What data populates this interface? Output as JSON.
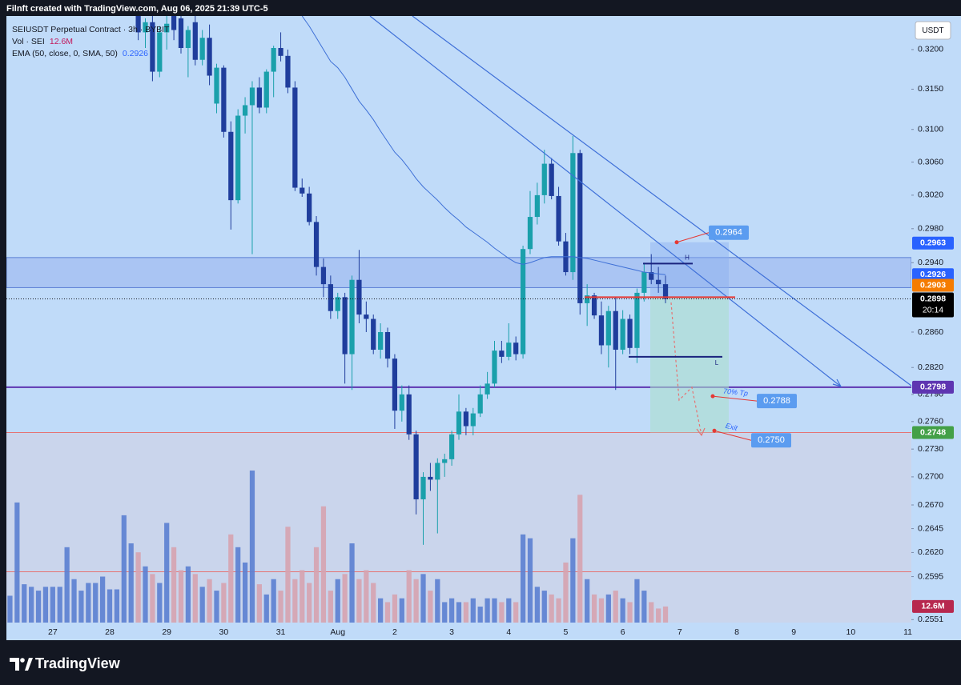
{
  "header": {
    "attribution": "Filnft created with TradingView.com, Aug 06, 2025 21:39 UTC-5"
  },
  "legend": {
    "symbol": "SEIUSDT Perpetual Contract · 3h · BYBIT",
    "volume": "Vol · SEI",
    "ema": "EMA (50, close, 0, SMA, 50)"
  },
  "currency_button": "USDT",
  "footer": {
    "brand": "TradingView"
  },
  "chart_data": {
    "type": "candlestick",
    "log_scale": true,
    "grid": false,
    "up_color": "#1aa0ab",
    "down_color": "#1f3d9c",
    "volume_up_color": "#5b7fd1",
    "volume_down_color": "#d6a3b0",
    "ema_color": "#3d6fd6",
    "ylim": [
      0.2548,
      0.3243
    ],
    "yticks": [
      {
        "value": 0.32,
        "label": "0.3200"
      },
      {
        "value": 0.315,
        "label": "0.3150"
      },
      {
        "value": 0.31,
        "label": "0.3100"
      },
      {
        "value": 0.306,
        "label": "0.3060"
      },
      {
        "value": 0.302,
        "label": "0.3020"
      },
      {
        "value": 0.298,
        "label": "0.2980"
      },
      {
        "value": 0.294,
        "label": "0.2940"
      },
      {
        "value": 0.286,
        "label": "0.2860"
      },
      {
        "value": 0.282,
        "label": "0.2820"
      },
      {
        "value": 0.279,
        "label": "0.2790"
      },
      {
        "value": 0.276,
        "label": "0.2760"
      },
      {
        "value": 0.273,
        "label": "0.2730"
      },
      {
        "value": 0.27,
        "label": "0.2700"
      },
      {
        "value": 0.267,
        "label": "0.2670"
      },
      0.2645,
      {
        "value": 0.262,
        "label": "0.2620"
      },
      0.2595,
      0.2551
    ],
    "categories": [
      null,
      null,
      null,
      null,
      null,
      null,
      "27",
      null,
      null,
      null,
      null,
      null,
      null,
      null,
      "28",
      null,
      null,
      null,
      null,
      null,
      null,
      null,
      "29",
      null,
      null,
      null,
      null,
      null,
      null,
      null,
      "30",
      null,
      null,
      null,
      null,
      null,
      null,
      null,
      "31",
      null,
      null,
      null,
      null,
      null,
      null,
      null,
      "Aug",
      null,
      null,
      null,
      null,
      null,
      null,
      null,
      "2",
      null,
      null,
      null,
      null,
      null,
      null,
      null,
      "3",
      null,
      null,
      null,
      null,
      null,
      null,
      null,
      "4",
      null,
      null,
      null,
      null,
      null,
      null,
      null,
      "5",
      null,
      null,
      null,
      null,
      null,
      null,
      null,
      "6",
      null,
      null,
      null,
      null,
      null,
      null,
      null,
      "7",
      null,
      null,
      null,
      null,
      null,
      null,
      null,
      "8",
      null,
      null,
      null,
      null,
      null,
      null,
      null,
      "9",
      null,
      null,
      null,
      null,
      null,
      null,
      null,
      "10",
      null,
      null,
      null,
      null,
      null,
      null,
      null,
      "11"
    ],
    "open": [
      null,
      null,
      null,
      null,
      null,
      null,
      null,
      null,
      null,
      null,
      null,
      null,
      null,
      null,
      null,
      null,
      null,
      null,
      0.3243,
      0.3222,
      0.3235,
      0.3172,
      0.3222,
      0.3243,
      0.324,
      0.3202,
      0.3235,
      0.3187,
      0.3215,
      0.3132,
      0.3177,
      0.3097,
      0.3014,
      0.3117,
      0.313,
      0.3152,
      0.3127,
      0.3172,
      0.3202,
      0.3192,
      0.3152,
      0.3029,
      0.3022,
      0.2988,
      0.2935,
      0.2915,
      0.2884,
      0.29,
      0.2835,
      0.292,
      0.288,
      0.2875,
      0.284,
      0.286,
      0.283,
      0.2772,
      0.279,
      0.2746,
      0.2676,
      0.27,
      0.2697,
      0.2715,
      0.2719,
      0.2746,
      0.2771,
      0.2755,
      0.2769,
      0.279,
      0.2802,
      0.2839,
      0.2832,
      0.2848,
      0.2835,
      0.2956,
      0.2994,
      0.302,
      0.3058,
      0.3019,
      0.2965,
      0.2929,
      0.3071,
      0.2893,
      0.2902,
      0.2879,
      0.2845,
      0.2884,
      0.284,
      0.2875,
      0.2842,
      0.2905,
      0.2929,
      0.292,
      0.2915,
      null,
      null,
      null,
      null,
      null,
      null,
      null,
      null,
      null,
      null,
      null,
      null,
      null,
      null,
      null,
      null,
      null,
      null,
      null,
      null,
      null,
      null,
      null,
      null,
      null,
      null,
      null,
      null,
      null,
      null,
      null,
      null,
      null,
      null
    ],
    "high": [
      null,
      null,
      null,
      null,
      null,
      null,
      null,
      null,
      null,
      null,
      null,
      null,
      null,
      null,
      null,
      null,
      null,
      null,
      0.325,
      0.324,
      0.3243,
      0.323,
      0.3243,
      0.325,
      0.325,
      0.323,
      0.3243,
      0.3225,
      0.3232,
      0.3182,
      0.318,
      0.311,
      0.3125,
      0.314,
      0.316,
      0.3165,
      0.3175,
      0.3205,
      0.3222,
      0.32,
      0.316,
      0.304,
      0.303,
      0.2995,
      0.2945,
      0.2925,
      0.2905,
      0.2905,
      0.2925,
      0.2955,
      0.2895,
      0.288,
      0.287,
      0.2865,
      0.2835,
      0.28,
      0.28,
      0.275,
      0.2705,
      0.2715,
      0.272,
      0.2725,
      0.275,
      0.279,
      0.2775,
      0.2775,
      0.28,
      0.2815,
      0.285,
      0.285,
      0.287,
      0.2855,
      0.296,
      0.3025,
      0.3035,
      0.3075,
      0.3065,
      0.303,
      0.2975,
      0.3092,
      0.3075,
      0.2915,
      0.2905,
      0.2895,
      0.289,
      0.29,
      0.2885,
      0.288,
      0.291,
      0.294,
      0.295,
      0.2935,
      0.2925,
      null,
      null,
      null,
      null,
      null,
      null,
      null,
      null,
      null,
      null,
      null,
      null,
      null,
      null,
      null,
      null,
      null,
      null,
      null,
      null,
      null,
      null,
      null,
      null,
      null,
      null,
      null,
      null,
      null,
      null,
      null,
      null,
      null,
      null
    ],
    "low": [
      null,
      null,
      null,
      null,
      null,
      null,
      null,
      null,
      null,
      null,
      null,
      null,
      null,
      null,
      null,
      null,
      null,
      null,
      0.3212,
      0.3202,
      0.316,
      0.3165,
      0.32,
      0.3212,
      0.3195,
      0.3165,
      0.318,
      0.318,
      0.3155,
      0.312,
      0.309,
      0.2979,
      0.301,
      0.3095,
      0.295,
      0.312,
      0.312,
      0.314,
      0.3185,
      0.3145,
      0.3025,
      0.3018,
      0.2984,
      0.2925,
      0.29,
      0.2875,
      0.2875,
      0.2802,
      0.2795,
      0.287,
      0.286,
      0.2835,
      0.283,
      0.282,
      0.2752,
      0.276,
      0.274,
      0.266,
      0.2628,
      0.2685,
      0.264,
      0.27,
      0.2712,
      0.274,
      0.2745,
      0.2745,
      0.2765,
      0.2785,
      0.2798,
      0.2825,
      0.2828,
      0.2828,
      0.283,
      0.295,
      0.2985,
      0.301,
      0.3015,
      0.296,
      0.2925,
      0.292,
      0.288,
      0.2867,
      0.2875,
      0.2835,
      0.282,
      0.2795,
      0.2835,
      0.2835,
      0.2825,
      0.2895,
      0.2915,
      0.2905,
      0.2893,
      null,
      null,
      null,
      null,
      null,
      null,
      null,
      null,
      null,
      null,
      null,
      null,
      null,
      null,
      null,
      null,
      null,
      null,
      null,
      null,
      null,
      null,
      null,
      null,
      null,
      null,
      null,
      null,
      null,
      null,
      null,
      null,
      null,
      null
    ],
    "close": [
      null,
      null,
      null,
      null,
      null,
      null,
      null,
      null,
      null,
      null,
      null,
      null,
      null,
      null,
      null,
      null,
      null,
      null,
      0.3222,
      0.3235,
      0.3172,
      0.3222,
      0.3233,
      0.3225,
      0.3202,
      0.3225,
      0.3187,
      0.3215,
      0.3167,
      0.3177,
      0.3097,
      0.3014,
      0.3117,
      0.313,
      0.3152,
      0.3127,
      0.3172,
      0.3202,
      0.3192,
      0.3152,
      0.3029,
      0.3022,
      0.2988,
      0.2935,
      0.2915,
      0.2884,
      0.29,
      0.2835,
      0.292,
      0.288,
      0.2875,
      0.284,
      0.286,
      0.283,
      0.2772,
      0.279,
      0.2746,
      0.2676,
      0.27,
      0.2697,
      0.2715,
      0.2719,
      0.2746,
      0.2771,
      0.2755,
      0.2769,
      0.279,
      0.2802,
      0.2839,
      0.2832,
      0.2848,
      0.2835,
      0.2956,
      0.2994,
      0.302,
      0.3058,
      0.3019,
      0.2965,
      0.2929,
      0.3071,
      0.2893,
      0.2902,
      0.2879,
      0.2845,
      0.2884,
      0.284,
      0.2875,
      0.2842,
      0.2905,
      0.2929,
      0.292,
      0.2915,
      0.2898,
      null,
      null,
      null,
      null,
      null,
      null,
      null,
      null,
      null,
      null,
      null,
      null,
      null,
      null,
      null,
      null,
      null,
      null,
      null,
      null,
      null,
      null,
      null,
      null,
      null,
      null,
      null,
      null,
      null,
      null,
      null,
      null,
      null,
      null
    ],
    "volume": [
      21,
      94,
      30,
      28,
      25,
      28,
      28,
      28,
      59,
      34,
      25,
      31,
      31,
      36,
      26,
      26,
      84,
      62,
      55,
      44,
      38,
      31,
      78,
      59,
      41,
      44,
      38,
      28,
      34,
      25,
      31,
      69,
      59,
      47,
      119,
      30,
      22,
      34,
      25,
      75,
      34,
      41,
      31,
      59,
      91,
      25,
      34,
      38,
      62,
      34,
      41,
      31,
      19,
      16,
      22,
      19,
      41,
      34,
      38,
      25,
      34,
      16,
      19,
      16,
      16,
      19,
      12.5,
      19,
      19,
      16,
      19,
      16,
      69,
      66,
      28,
      25,
      22,
      19,
      47,
      66,
      100,
      34,
      22,
      19,
      22,
      25,
      19,
      16,
      34,
      25,
      16,
      11,
      12.6,
      null,
      null,
      null,
      null,
      null,
      null,
      null,
      null,
      null,
      null,
      null,
      null,
      null,
      null,
      null,
      null,
      null,
      null,
      null,
      null,
      null,
      null,
      null,
      null,
      null,
      null,
      null,
      null,
      null,
      null,
      null,
      null,
      null,
      null
    ],
    "volume_value_labels": [
      null,
      null,
      null,
      null,
      null,
      null,
      null,
      null,
      null,
      null,
      null,
      null,
      null,
      null,
      null,
      null,
      null,
      null,
      null,
      null,
      null,
      null,
      null,
      null,
      null,
      null,
      null,
      null,
      null,
      null,
      null,
      null,
      null,
      null,
      null,
      null,
      null,
      null,
      null,
      null,
      null,
      null,
      null,
      null,
      null,
      null,
      null,
      null,
      null,
      null,
      null,
      null,
      null,
      null,
      null,
      null,
      null,
      null,
      null,
      null,
      null,
      null,
      null,
      null,
      null,
      null,
      null,
      null,
      null,
      null,
      null,
      null,
      null,
      null,
      null,
      null,
      null,
      null,
      null,
      null,
      null,
      null,
      null,
      null,
      null,
      null,
      null,
      null,
      null,
      null,
      null,
      null,
      "12.6M",
      null,
      null,
      null,
      null,
      null,
      null,
      null,
      null,
      null,
      null,
      null,
      null,
      null,
      null,
      null,
      null,
      null,
      null,
      null,
      null,
      null,
      null,
      null,
      null,
      null,
      null,
      null,
      null,
      null,
      null,
      null,
      null,
      null,
      null
    ],
    "ema": [
      null,
      null,
      null,
      null,
      null,
      null,
      null,
      null,
      null,
      null,
      null,
      null,
      null,
      null,
      null,
      null,
      null,
      null,
      null,
      null,
      null,
      null,
      null,
      null,
      null,
      null,
      null,
      null,
      null,
      null,
      null,
      null,
      null,
      null,
      null,
      null,
      null,
      null,
      null,
      null,
      null,
      0.3243,
      0.323,
      0.3215,
      0.32,
      0.3185,
      0.3177,
      0.3165,
      0.315,
      0.3135,
      0.3124,
      0.3112,
      0.3098,
      0.3085,
      0.3072,
      0.3063,
      0.3052,
      0.304,
      0.303,
      0.3022,
      0.3014,
      0.3005,
      0.2997,
      0.299,
      0.2982,
      0.2976,
      0.297,
      0.2964,
      0.2957,
      0.2951,
      0.2945,
      0.294,
      0.2938,
      0.294,
      0.2943,
      0.2946,
      0.2947,
      0.2947,
      0.2947,
      0.2947,
      0.2946,
      0.2945,
      0.2943,
      0.2941,
      0.2939,
      0.2937,
      0.2935,
      0.2933,
      0.2931,
      0.2929,
      0.2928,
      0.2927,
      0.2926,
      null,
      null,
      null,
      null,
      null,
      null,
      null,
      null,
      null,
      null,
      null,
      null,
      null,
      null,
      null,
      null,
      null,
      null,
      null,
      null,
      null,
      null,
      null,
      null,
      null,
      null,
      null,
      null,
      null,
      null,
      null,
      null,
      null,
      null
    ],
    "price_lines": [
      {
        "value": 0.2963,
        "label": "0.2963",
        "color": "#2962ff"
      },
      {
        "value": 0.2926,
        "label": "0.2926",
        "color": "#2962ff"
      },
      {
        "value": 0.2903,
        "label": "0.2903",
        "color": "#f57c00"
      },
      {
        "value": 0.2898,
        "label": "0.2898",
        "color": "#000000",
        "countdown": "20:14"
      },
      {
        "value": 0.2798,
        "label": "0.2798",
        "color": "#5e35b1"
      },
      {
        "value": 0.2748,
        "label": "0.2748",
        "color": "#43a047"
      }
    ],
    "levels": {
      "zone": [
        0.2946,
        0.2911
      ],
      "lines": [
        {
          "value": 0.2798,
          "color": "#5e35b1"
        },
        {
          "value": 0.2748,
          "color": "#e57373"
        },
        {
          "value": 0.26,
          "color": "#e57373"
        }
      ]
    },
    "position": {
      "entry": 0.29,
      "stop": 0.2964,
      "target": 0.2748
    },
    "swing_levels": [
      {
        "label": "H",
        "value": 0.2939
      },
      {
        "label": "L",
        "value": 0.2832
      }
    ],
    "callouts": [
      {
        "value": 0.2964,
        "label": "0.2964"
      },
      {
        "value": 0.2788,
        "label": "0.2788",
        "note": "70% Tp"
      },
      {
        "value": 0.275,
        "label": "0.2750",
        "note": "Exit"
      }
    ]
  }
}
